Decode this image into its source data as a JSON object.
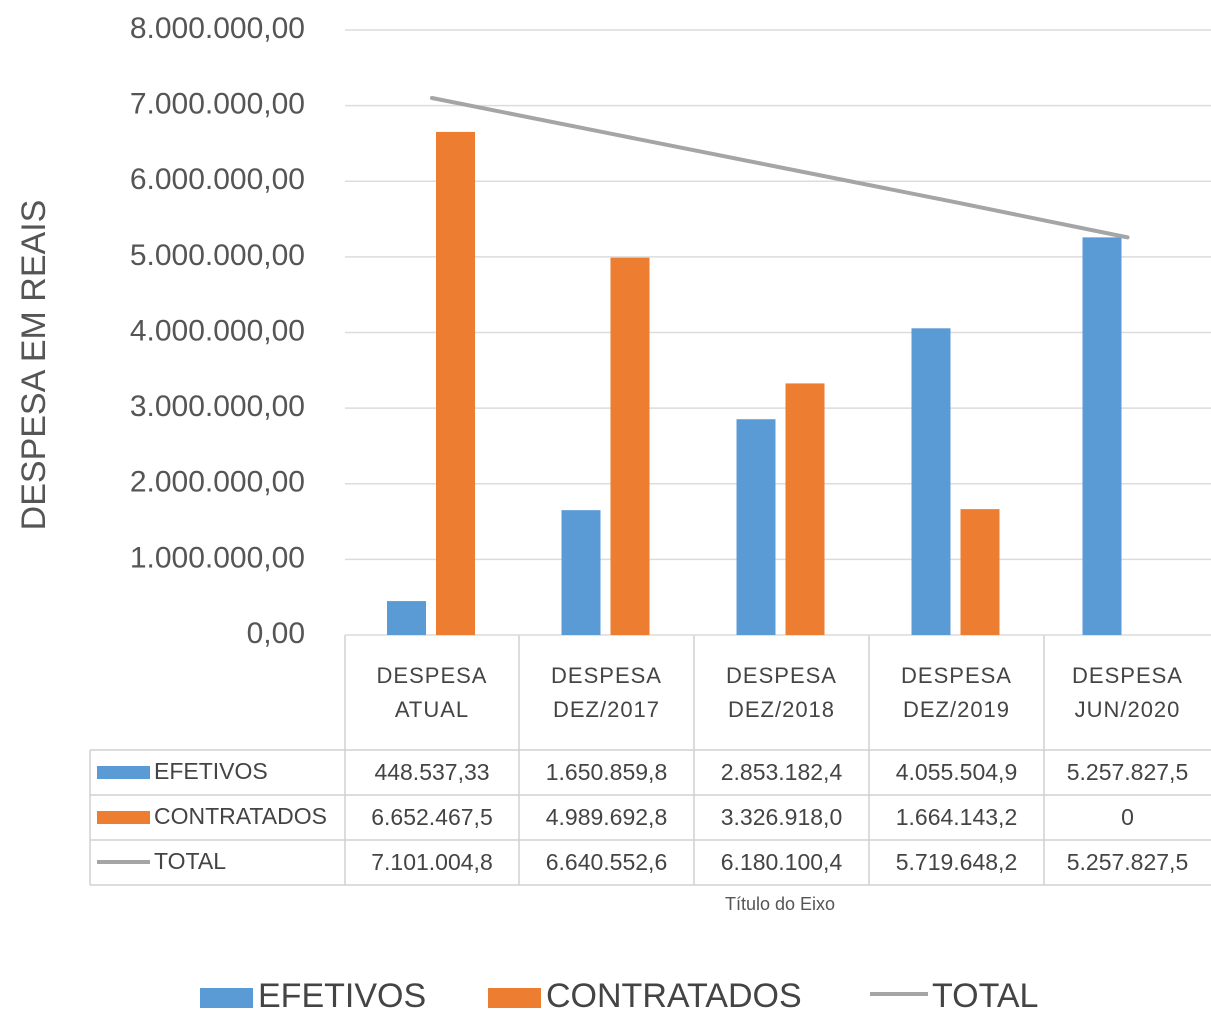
{
  "chart_data": {
    "type": "bar_line_table",
    "y_axis_label": "DESPESA EM REAIS",
    "x_axis_label": "Título do Eixo",
    "categories": [
      "DESPESA ATUAL",
      "DESPESA DEZ/2017",
      "DESPESA DEZ/2018",
      "DESPESA DEZ/2019",
      "DESPESA JUN/2020"
    ],
    "series": [
      {
        "name": "EFETIVOS",
        "type": "bar",
        "color": "#5b9bd5",
        "values": [
          448537.33,
          1650859.8,
          2853182.4,
          4055504.9,
          5257827.5
        ],
        "value_labels": [
          "448.537,33",
          "1.650.859,8",
          "2.853.182,4",
          "4.055.504,9",
          "5.257.827,5"
        ]
      },
      {
        "name": "CONTRATADOS",
        "type": "bar",
        "color": "#ed7d31",
        "values": [
          6652467.5,
          4989692.8,
          3326918.0,
          1664143.2,
          0
        ],
        "value_labels": [
          "6.652.467,5",
          "4.989.692,8",
          "3.326.918,0",
          "1.664.143,2",
          "0"
        ]
      },
      {
        "name": "TOTAL",
        "type": "line",
        "color": "#a5a5a5",
        "values": [
          7101004.8,
          6640552.6,
          6180100.4,
          5719648.2,
          5257827.5
        ],
        "value_labels": [
          "7.101.004,8",
          "6.640.552,6",
          "6.180.100,4",
          "5.719.648,2",
          "5.257.827,5"
        ]
      }
    ],
    "ylim": [
      0,
      8000000
    ],
    "yticks": [
      {
        "value": 0,
        "label": "0,00"
      },
      {
        "value": 1000000,
        "label": "1.000.000,00"
      },
      {
        "value": 2000000,
        "label": "2.000.000,00"
      },
      {
        "value": 3000000,
        "label": "3.000.000,00"
      },
      {
        "value": 4000000,
        "label": "4.000.000,00"
      },
      {
        "value": 5000000,
        "label": "5.000.000,00"
      },
      {
        "value": 6000000,
        "label": "6.000.000,00"
      },
      {
        "value": 7000000,
        "label": "7.000.000,00"
      },
      {
        "value": 8000000,
        "label": "8.000.000,00"
      }
    ],
    "grid": true,
    "legend": "bottom"
  }
}
